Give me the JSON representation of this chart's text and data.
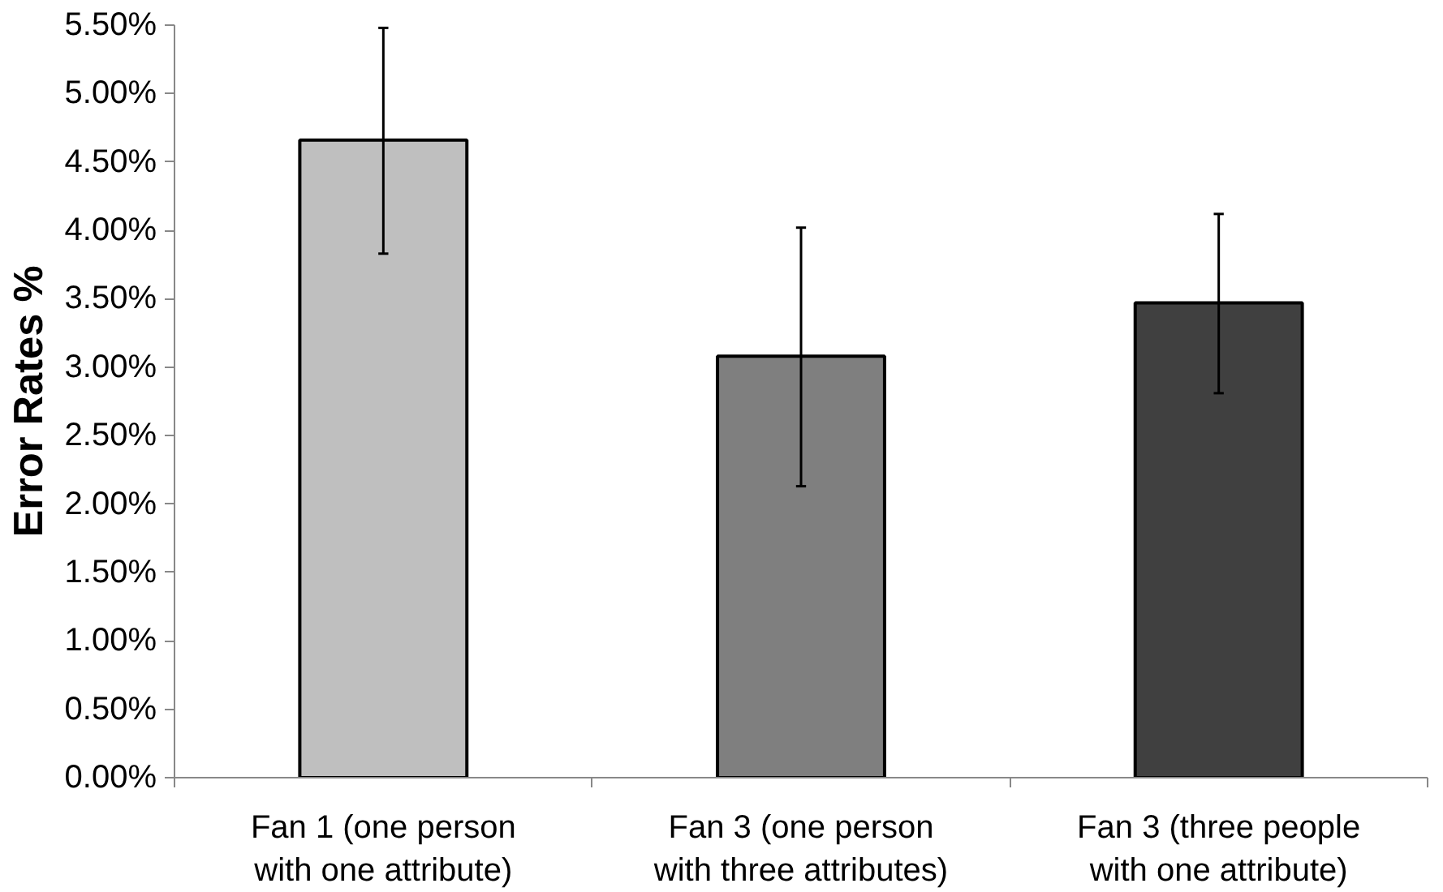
{
  "chart_data": {
    "type": "bar",
    "ylabel": "Error Rates %",
    "categories": [
      "Fan 1 (one person\nwith one attribute)",
      "Fan 3 (one person\nwith three attributes)",
      "Fan 3 (three people\nwith one attribute)"
    ],
    "values": [
      4.66,
      3.08,
      3.47
    ],
    "colors": [
      "#bfbfbf",
      "#7f7f7f",
      "#404040"
    ],
    "errors": [
      [
        3.83,
        5.48
      ],
      [
        2.13,
        4.02
      ],
      [
        2.81,
        4.12
      ]
    ],
    "ylim": [
      0,
      5.5
    ],
    "yticks": [
      {
        "value": 0,
        "label": "0.00%"
      },
      {
        "value": 0.5,
        "label": "0.50%"
      },
      {
        "value": 1,
        "label": "1.00%"
      },
      {
        "value": 1.5,
        "label": "1.50%"
      },
      {
        "value": 2,
        "label": "2.00%"
      },
      {
        "value": 2.5,
        "label": "2.50%"
      },
      {
        "value": 3,
        "label": "3.00%"
      },
      {
        "value": 3.5,
        "label": "3.50%"
      },
      {
        "value": 4,
        "label": "4.00%"
      },
      {
        "value": 4.5,
        "label": "4.50%"
      },
      {
        "value": 5,
        "label": "5.00%"
      },
      {
        "value": 5.5,
        "label": "5.50%"
      }
    ],
    "grid": false
  }
}
